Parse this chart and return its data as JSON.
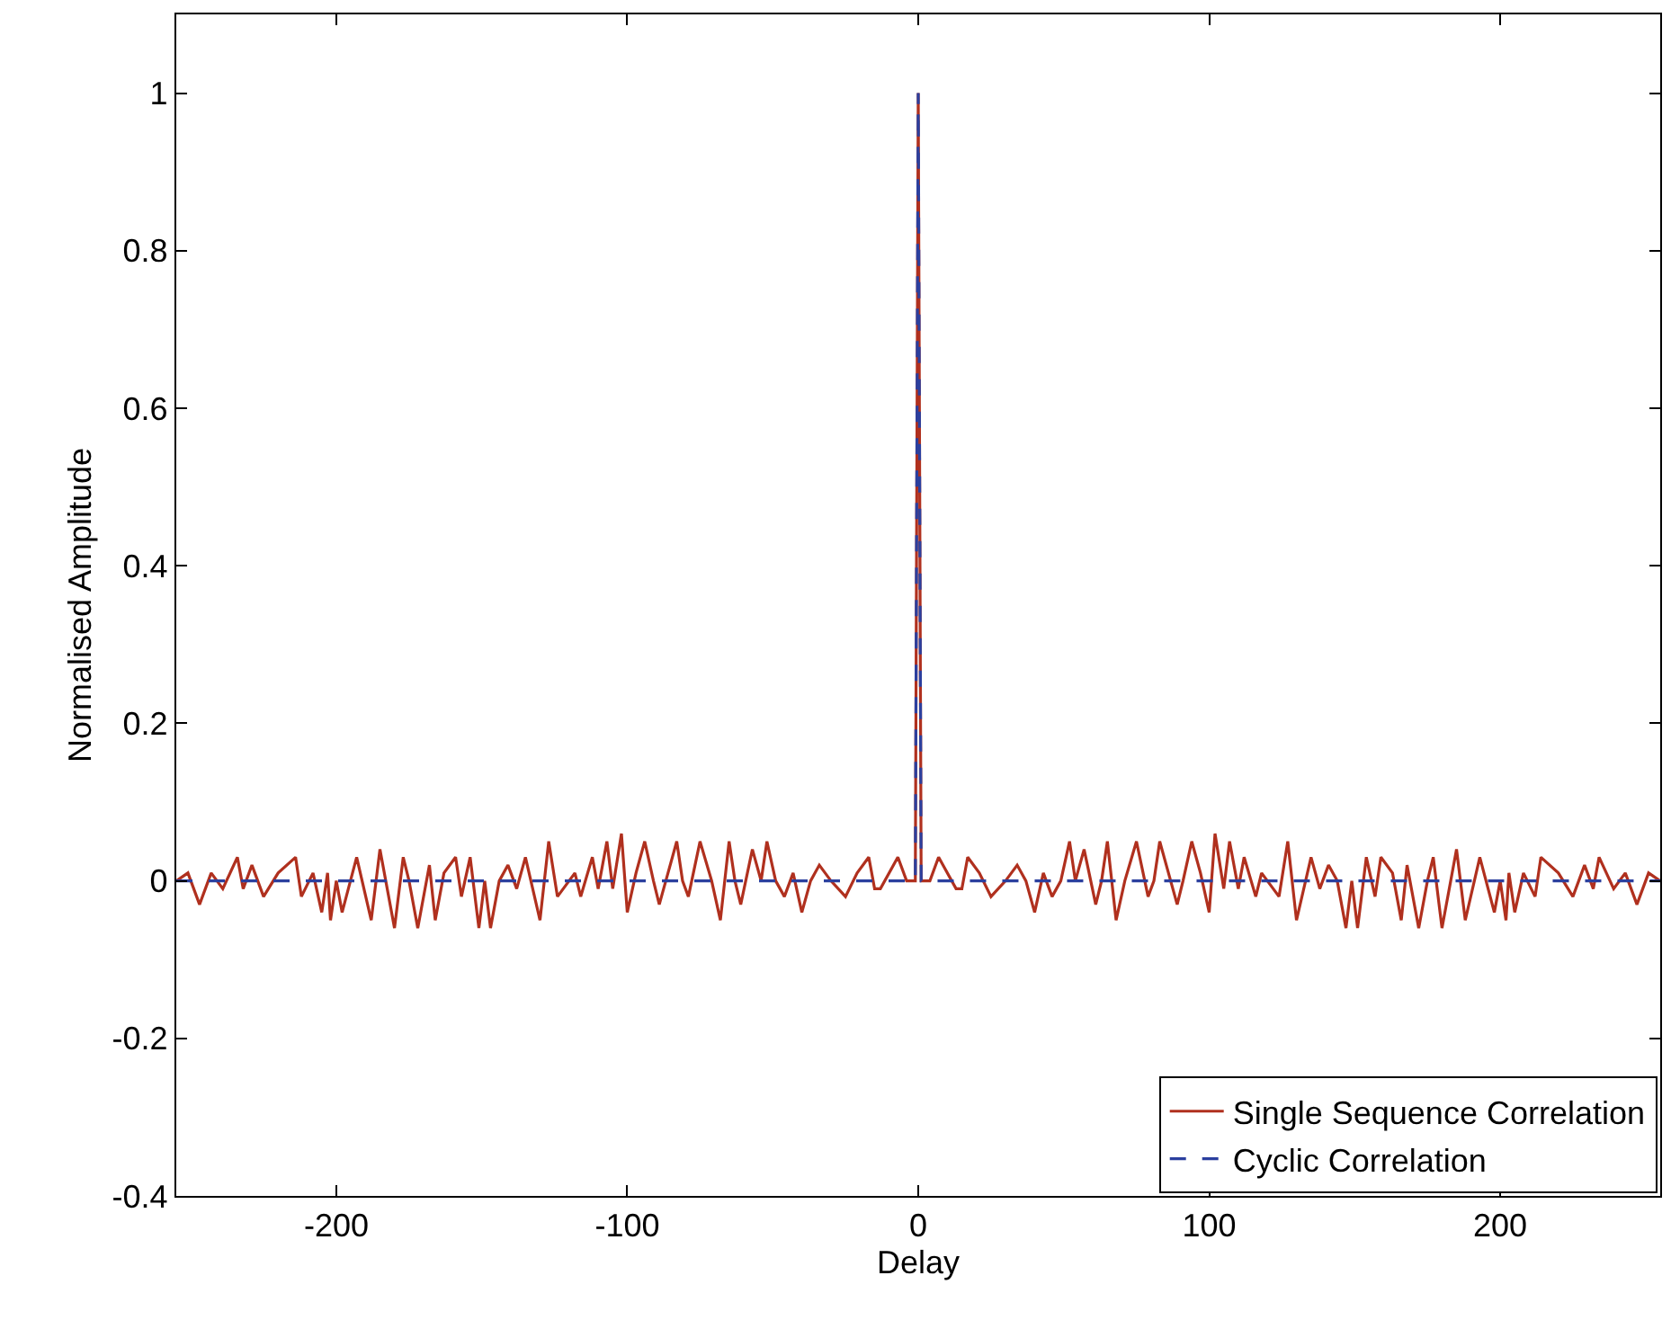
{
  "chart_data": {
    "type": "line",
    "xlabel": "Delay",
    "ylabel": "Normalised Amplitude",
    "xlim": [
      -255,
      255
    ],
    "xticks": [
      -200,
      -100,
      0,
      100,
      200
    ],
    "ylim": [
      -0.4,
      1.1
    ],
    "yticks": [
      -0.4,
      -0.2,
      0,
      0.2,
      0.4,
      0.6,
      0.8,
      1
    ],
    "legend": "bottom right",
    "marker": "none",
    "series": [
      {
        "name": "Single Sequence Correlation",
        "color": "#b0301e",
        "line_style": "solid",
        "x": [
          -255,
          -251,
          -247,
          -243,
          -239,
          -234,
          -232,
          -229,
          -225,
          -220,
          -214,
          -212,
          -208,
          -205,
          -203,
          -202,
          -200,
          -198,
          -193,
          -188,
          -185,
          -183,
          -180,
          -177,
          -175,
          -172,
          -168,
          -166,
          -163,
          -159,
          -157,
          -154,
          -151,
          -149,
          -147,
          -144,
          -141,
          -138,
          -135,
          -130,
          -127,
          -124,
          -118,
          -116,
          -112,
          -110,
          -107,
          -105,
          -102,
          -100,
          -97,
          -94,
          -91,
          -89,
          -86,
          -83,
          -81,
          -79,
          -75,
          -71,
          -68,
          -65,
          -63,
          -61,
          -57,
          -54,
          -52,
          -49,
          -46,
          -43,
          -40,
          -37,
          -34,
          -30,
          -25,
          -21,
          -17,
          -15,
          -13,
          -7,
          -4,
          -1,
          0,
          1,
          4,
          7,
          13,
          15,
          17,
          21,
          25,
          30,
          34,
          37,
          40,
          43,
          46,
          49,
          52,
          54,
          57,
          61,
          63,
          65,
          68,
          71,
          75,
          79,
          81,
          83,
          86,
          89,
          91,
          94,
          97,
          100,
          102,
          105,
          107,
          110,
          112,
          116,
          118,
          124,
          127,
          130,
          135,
          138,
          141,
          144,
          147,
          149,
          151,
          154,
          157,
          159,
          163,
          166,
          168,
          172,
          175,
          177,
          180,
          183,
          185,
          188,
          193,
          198,
          200,
          202,
          203,
          205,
          208,
          212,
          214,
          220,
          225,
          229,
          232,
          234,
          239,
          243,
          247,
          251,
          255
        ],
        "values": [
          0,
          0.01,
          -0.03,
          0.01,
          -0.01,
          0.03,
          -0.01,
          0.02,
          -0.02,
          0.01,
          0.03,
          -0.02,
          0.01,
          -0.04,
          0.01,
          -0.05,
          0,
          -0.04,
          0.03,
          -0.05,
          0.04,
          0,
          -0.06,
          0.03,
          0,
          -0.06,
          0.02,
          -0.05,
          0.01,
          0.03,
          -0.02,
          0.03,
          -0.06,
          0,
          -0.06,
          0,
          0.02,
          -0.01,
          0.03,
          -0.05,
          0.05,
          -0.02,
          0.01,
          -0.02,
          0.03,
          -0.01,
          0.05,
          -0.01,
          0.06,
          -0.04,
          0.01,
          0.05,
          0,
          -0.03,
          0.01,
          0.05,
          0,
          -0.02,
          0.05,
          0,
          -0.05,
          0.05,
          0,
          -0.03,
          0.04,
          0,
          0.05,
          0,
          -0.02,
          0.01,
          -0.04,
          0,
          0.02,
          0,
          -0.02,
          0.01,
          0.03,
          -0.01,
          -0.01,
          0.03,
          0,
          0,
          1,
          0,
          0,
          0.03,
          -0.01,
          -0.01,
          0.03,
          0.01,
          -0.02,
          0,
          0.02,
          0,
          -0.04,
          0.01,
          -0.02,
          0,
          0.05,
          0,
          0.04,
          -0.03,
          0,
          0.05,
          -0.05,
          0,
          0.05,
          -0.02,
          0,
          0.05,
          0.01,
          -0.03,
          0,
          0.05,
          0.01,
          -0.04,
          0.06,
          -0.01,
          0.05,
          -0.01,
          0.03,
          -0.02,
          0.01,
          -0.02,
          0.05,
          -0.05,
          0.03,
          -0.01,
          0.02,
          0,
          -0.06,
          0,
          -0.06,
          0.03,
          -0.02,
          0.03,
          0.01,
          -0.05,
          0.02,
          -0.06,
          0,
          0.03,
          -0.06,
          0,
          0.04,
          -0.05,
          0.03,
          -0.04,
          0,
          -0.05,
          0.01,
          -0.04,
          0.01,
          -0.02,
          0.03,
          0.01,
          -0.02,
          0.02,
          -0.01,
          0.03,
          -0.01,
          0.01,
          -0.03,
          0.01,
          0
        ]
      },
      {
        "name": "Cyclic Correlation",
        "color": "#2b3f9e",
        "line_style": "dashed",
        "x": [
          -255,
          -1,
          0,
          1,
          255
        ],
        "values": [
          0,
          0,
          1,
          0,
          0
        ]
      }
    ]
  }
}
